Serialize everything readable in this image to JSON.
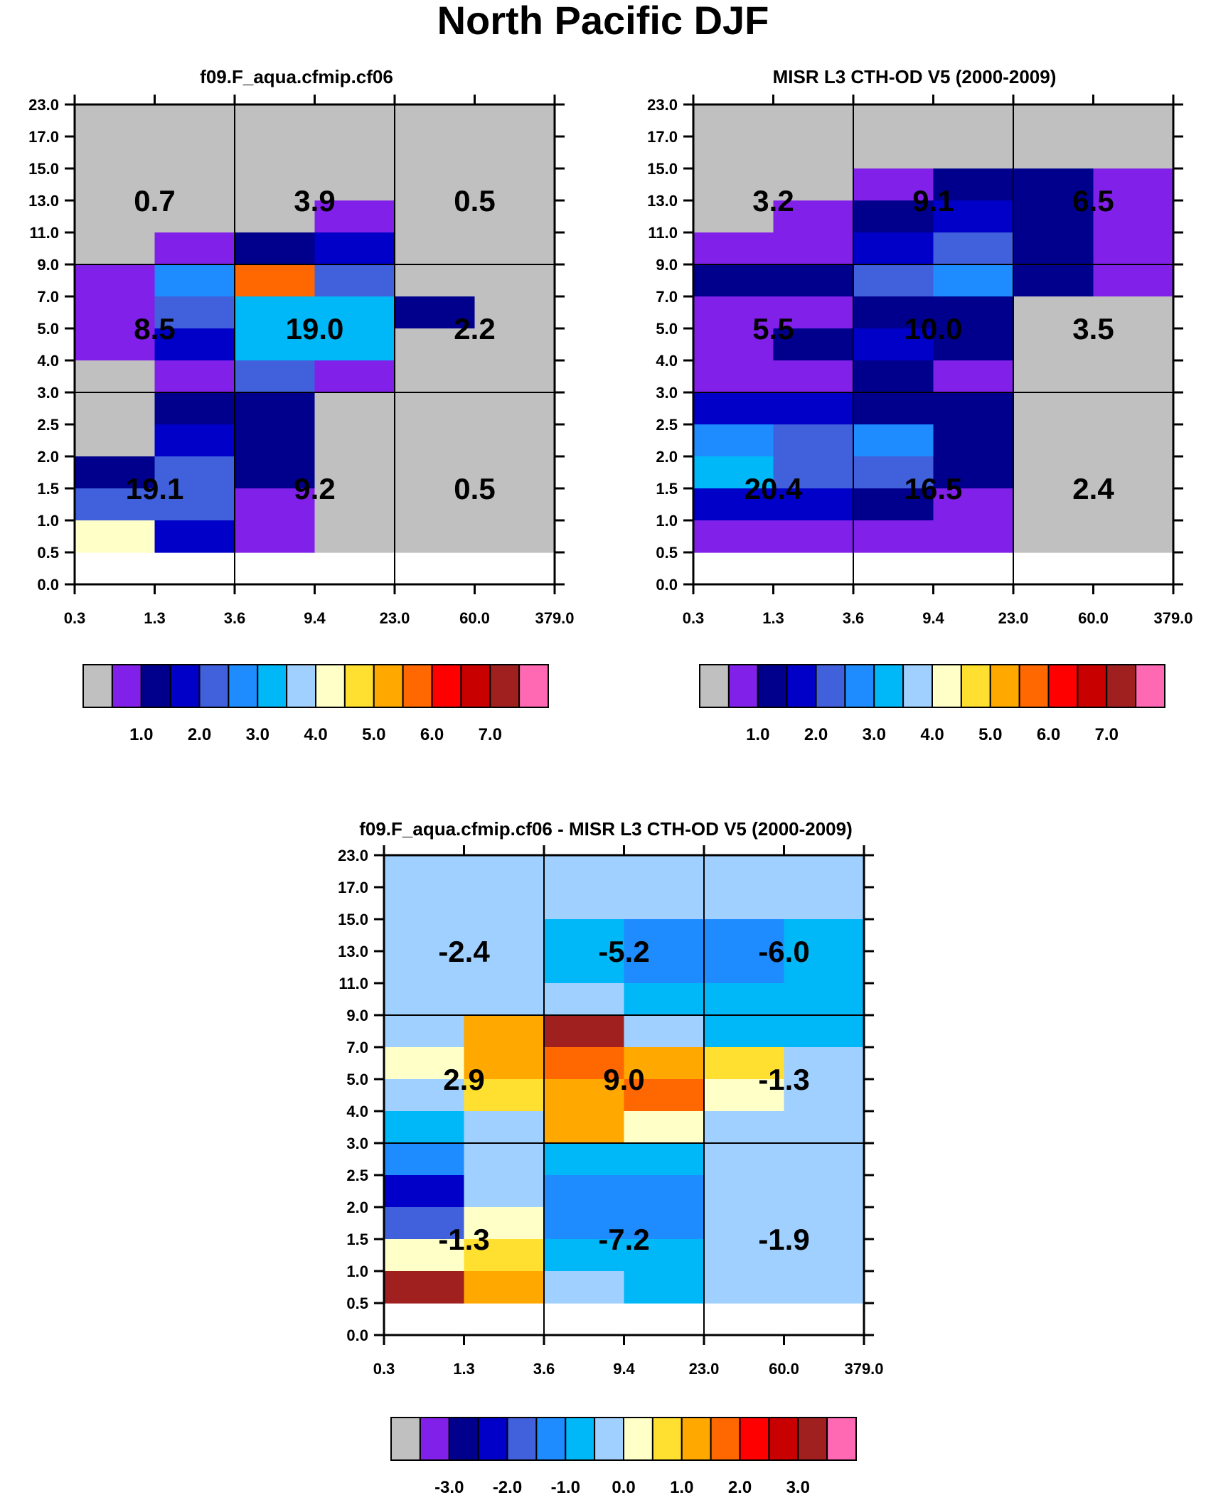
{
  "figure_title": "North Pacific DJF",
  "palette": [
    "#c0c0c0",
    "#8020e8",
    "#00008c",
    "#0000c8",
    "#4060dc",
    "#1e8cff",
    "#00b8f8",
    "#a0d0ff",
    "#ffffc8",
    "#ffe030",
    "#ffa800",
    "#ff6800",
    "#ff0000",
    "#c80000",
    "#a02020",
    "#ff69b4"
  ],
  "chart_data": [
    {
      "type": "heatmap",
      "title": "f09.F_aqua.cfmip.cf06",
      "x_ticks": [
        "0.3",
        "1.3",
        "3.6",
        "9.4",
        "23.0",
        "60.0",
        "379.0"
      ],
      "y_ticks": [
        "0.0",
        "0.5",
        "1.0",
        "1.5",
        "2.0",
        "2.5",
        "3.0",
        "4.0",
        "5.0",
        "7.0",
        "9.0",
        "11.0",
        "13.0",
        "15.0",
        "17.0",
        "23.0"
      ],
      "cell_color_index_rows_top_to_bottom": [
        [
          0,
          0,
          0,
          0,
          0,
          0
        ],
        [
          0,
          0,
          0,
          0,
          0,
          0
        ],
        [
          0,
          0,
          0,
          0,
          0,
          0
        ],
        [
          0,
          0,
          0,
          1,
          0,
          0
        ],
        [
          0,
          1,
          2,
          3,
          0,
          0
        ],
        [
          1,
          5,
          11,
          4,
          0,
          0
        ],
        [
          1,
          4,
          6,
          6,
          2,
          0
        ],
        [
          1,
          3,
          6,
          6,
          0,
          0
        ],
        [
          0,
          1,
          4,
          1,
          0,
          0
        ],
        [
          0,
          2,
          2,
          0,
          0,
          0
        ],
        [
          0,
          3,
          2,
          0,
          0,
          0
        ],
        [
          2,
          4,
          2,
          0,
          0,
          0
        ],
        [
          4,
          4,
          1,
          0,
          0,
          0
        ],
        [
          8,
          3,
          1,
          0,
          0,
          0
        ]
      ],
      "summary_values": [
        [
          "0.7",
          "3.9",
          "0.5"
        ],
        [
          "8.5",
          "19.0",
          "2.2"
        ],
        [
          "19.1",
          "9.2",
          "0.5"
        ]
      ],
      "colorbar_labels": [
        "1.0",
        "2.0",
        "3.0",
        "4.0",
        "5.0",
        "6.0",
        "7.0"
      ]
    },
    {
      "type": "heatmap",
      "title": "MISR L3 CTH-OD V5 (2000-2009)",
      "x_ticks": [
        "0.3",
        "1.3",
        "3.6",
        "9.4",
        "23.0",
        "60.0",
        "379.0"
      ],
      "y_ticks": [
        "0.0",
        "0.5",
        "1.0",
        "1.5",
        "2.0",
        "2.5",
        "3.0",
        "4.0",
        "5.0",
        "7.0",
        "9.0",
        "11.0",
        "13.0",
        "15.0",
        "17.0",
        "23.0"
      ],
      "cell_color_index_rows_top_to_bottom": [
        [
          0,
          0,
          0,
          0,
          0,
          0
        ],
        [
          0,
          0,
          0,
          0,
          0,
          0
        ],
        [
          0,
          0,
          1,
          2,
          2,
          1
        ],
        [
          0,
          1,
          2,
          3,
          2,
          1
        ],
        [
          1,
          1,
          3,
          4,
          2,
          1
        ],
        [
          2,
          2,
          4,
          5,
          2,
          1
        ],
        [
          1,
          1,
          2,
          2,
          0,
          0
        ],
        [
          1,
          2,
          3,
          2,
          0,
          0
        ],
        [
          1,
          1,
          2,
          1,
          0,
          0
        ],
        [
          3,
          3,
          2,
          2,
          0,
          0
        ],
        [
          5,
          4,
          5,
          2,
          0,
          0
        ],
        [
          6,
          4,
          4,
          2,
          0,
          0
        ],
        [
          3,
          3,
          2,
          1,
          0,
          0
        ],
        [
          1,
          1,
          1,
          1,
          0,
          0
        ]
      ],
      "summary_values": [
        [
          "3.2",
          "9.1",
          "6.5"
        ],
        [
          "5.5",
          "10.0",
          "3.5"
        ],
        [
          "20.4",
          "16.5",
          "2.4"
        ]
      ],
      "colorbar_labels": [
        "1.0",
        "2.0",
        "3.0",
        "4.0",
        "5.0",
        "6.0",
        "7.0"
      ]
    },
    {
      "type": "heatmap",
      "title": "f09.F_aqua.cfmip.cf06 - MISR L3 CTH-OD V5 (2000-2009)",
      "x_ticks": [
        "0.3",
        "1.3",
        "3.6",
        "9.4",
        "23.0",
        "60.0",
        "379.0"
      ],
      "y_ticks": [
        "0.0",
        "0.5",
        "1.0",
        "1.5",
        "2.0",
        "2.5",
        "3.0",
        "4.0",
        "5.0",
        "7.0",
        "9.0",
        "11.0",
        "13.0",
        "15.0",
        "17.0",
        "23.0"
      ],
      "cell_color_index_rows_top_to_bottom": [
        [
          7,
          7,
          7,
          7,
          7,
          7
        ],
        [
          7,
          7,
          7,
          7,
          7,
          7
        ],
        [
          7,
          7,
          6,
          5,
          5,
          6
        ],
        [
          7,
          7,
          6,
          5,
          5,
          6
        ],
        [
          7,
          7,
          7,
          6,
          6,
          6
        ],
        [
          7,
          10,
          14,
          7,
          6,
          6
        ],
        [
          8,
          10,
          11,
          10,
          9,
          7
        ],
        [
          7,
          9,
          10,
          11,
          8,
          7
        ],
        [
          6,
          7,
          10,
          8,
          7,
          7
        ],
        [
          5,
          7,
          6,
          6,
          7,
          7
        ],
        [
          3,
          7,
          5,
          5,
          7,
          7
        ],
        [
          4,
          8,
          5,
          5,
          7,
          7
        ],
        [
          8,
          9,
          6,
          6,
          7,
          7
        ],
        [
          14,
          10,
          7,
          6,
          7,
          7
        ]
      ],
      "summary_values": [
        [
          "-2.4",
          "-5.2",
          "-6.0"
        ],
        [
          "2.9",
          "9.0",
          "-1.3"
        ],
        [
          "-1.3",
          "-7.2",
          "-1.9"
        ]
      ],
      "colorbar_labels": [
        "-3.0",
        "-2.0",
        "-1.0",
        "0.0",
        "1.0",
        "2.0",
        "3.0"
      ]
    }
  ]
}
